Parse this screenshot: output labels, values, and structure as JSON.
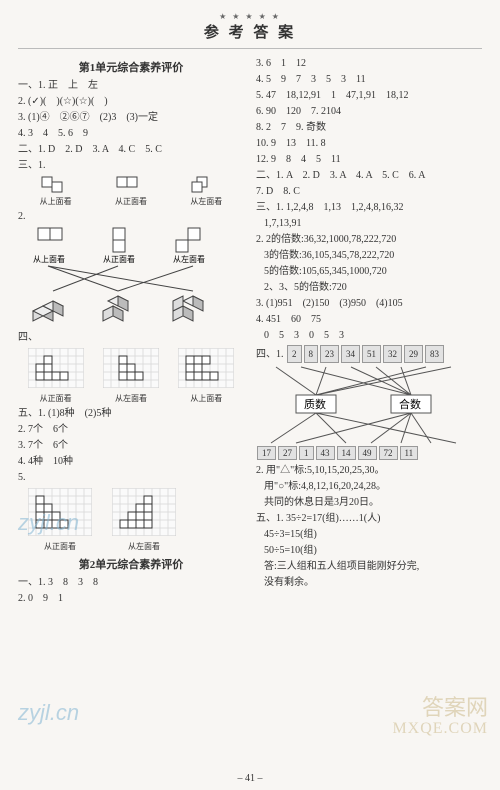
{
  "header": {
    "stars": "★ ★ ★ ★ ★",
    "title": "参 考 答 案"
  },
  "left": {
    "unit1_title": "第1单元综合素养评价",
    "sec1_label": "一、1.",
    "sec1_1": "正　上　左",
    "sec1_2": "2. (✓)(　)(☆)(☆)(　)",
    "sec1_3": "3. (1)④　②⑥⑦　(2)3　(3)一定",
    "sec1_4": "4. 3　4　5. 6　9",
    "sec2": "二、1. D　2. D　3. A　4. C　5. C",
    "sec3_label": "三、1.",
    "view_top": "从上面看",
    "view_front": "从正面看",
    "view_left": "从左面看",
    "sec3_2": "2.",
    "sec4_label": "四、",
    "sec5_label": "五、1.",
    "sec5_1": "(1)8种　(2)5种",
    "sec5_2": "2. 7个　6个",
    "sec5_3": "3. 7个　6个",
    "sec5_4": "4. 4种　10种",
    "sec5_5": "5.",
    "unit2_title": "第2单元综合素养评价",
    "u2_sec1": "一、1. 3　8　3　8",
    "u2_sec2": "2. 0　9　1"
  },
  "right": {
    "r1": "3. 6　1　12",
    "r2": "4. 5　9　7　3　5　3　11",
    "r3": "5. 47　18,12,91　1　47,1,91　18,12",
    "r4": "6. 90　120　7. 2104",
    "r5": "8. 2　7　9. 奇数",
    "r6": "10. 9　13　11. 8",
    "r7": "12. 9　8　4　5　11",
    "r_sec2": "二、1. A　2. D　3. A　4. A　5. C　6. A",
    "r_sec2b": "7. D　8. C",
    "r_sec3_1": "三、1. 1,2,4,8　1,13　1,2,4,8,16,32",
    "r_sec3_1b": "1,7,13,91",
    "r_sec3_2a": "2. 2的倍数:36,32,1000,78,222,720",
    "r_sec3_2b": "3的倍数:36,105,345,78,222,720",
    "r_sec3_2c": "5的倍数:105,65,345,1000,720",
    "r_sec3_2d": "2、3、5的倍数:720",
    "r_sec3_3": "3. (1)951　(2)150　(3)950　(4)105",
    "r_sec3_4a": "4. 451　60　75",
    "r_sec3_4b": "0　5　3　0　5　3",
    "r_sec4_label": "四、1.",
    "top_nums": [
      "2",
      "8",
      "23",
      "34",
      "51",
      "32",
      "29",
      "83"
    ],
    "cat_prime": "质数",
    "cat_composite": "合数",
    "bot_nums": [
      "17",
      "27",
      "1",
      "43",
      "14",
      "49",
      "72",
      "11"
    ],
    "r_sec4_2a": "2. 用\"△\"标:5,10,15,20,25,30。",
    "r_sec4_2b": "用\"○\"标:4,8,12,16,20,24,28。",
    "r_sec4_2c": "共同的休息日是3月20日。",
    "r_sec5_1": "五、1. 35÷2=17(组)……1(人)",
    "r_sec5_1b": "45÷3=15(组)",
    "r_sec5_1c": "50÷5=10(组)",
    "r_sec5_1d": "答:三人组和五人组项目能刚好分完,",
    "r_sec5_1e": "没有剩余。"
  },
  "watermarks": {
    "w1": "zyjl.cn",
    "w2": "zyjl.cn",
    "w3": "答案网",
    "w4": "MXQE.COM"
  },
  "page": "– 41 –"
}
